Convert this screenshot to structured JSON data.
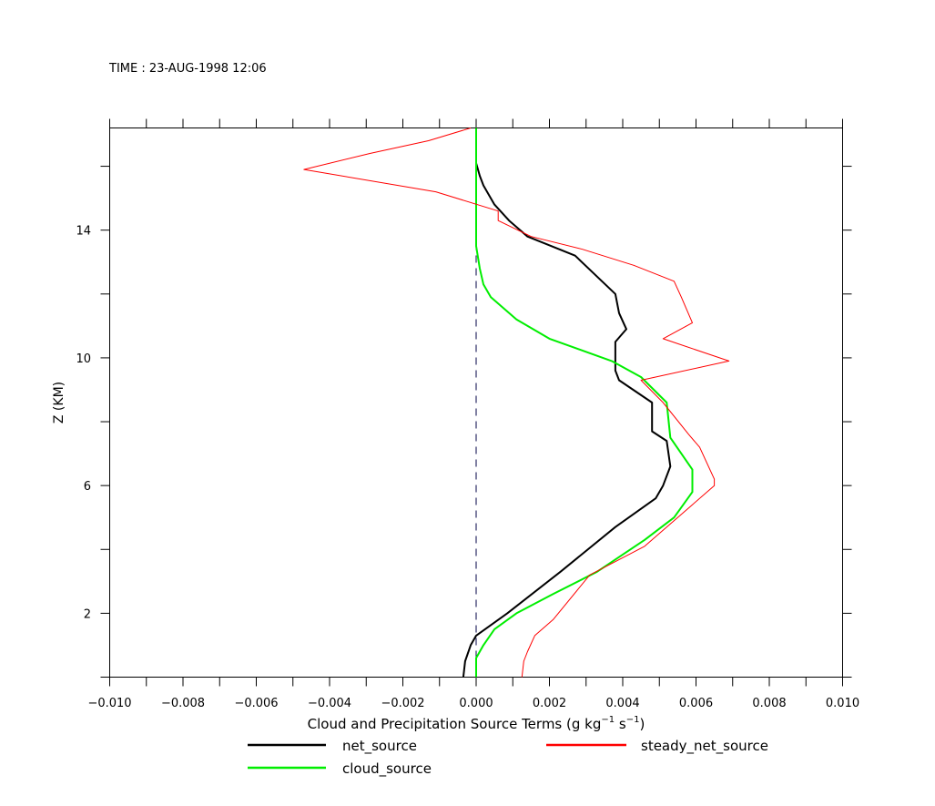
{
  "chart_data": {
    "type": "line",
    "title": "TIME : 23-AUG-1998 12:06",
    "xlabel_main": "Cloud and Precipitation Source Terms (g kg",
    "xlabel_sup1": "−1",
    "xlabel_mid": " s",
    "xlabel_sup2": "−1",
    "xlabel_end": ")",
    "ylabel": "Z (KM)",
    "xlim": [
      -0.01,
      0.01
    ],
    "ylim": [
      0.0,
      17.2
    ],
    "x_ticks": [
      "-0.010",
      "-0.008",
      "-0.006",
      "-0.004",
      "-0.002",
      "0.000",
      "0.002",
      "0.004",
      "0.006",
      "0.008",
      "0.010"
    ],
    "y_ticks": [
      "2",
      "6",
      "10",
      "14"
    ],
    "zero_line": "dashed",
    "legend_placement": "bottom",
    "series": [
      {
        "name": "net_source",
        "color": "#000000",
        "x": [
          -0.00035,
          -0.0003,
          -0.00015,
          0.0,
          0.00085,
          0.0023,
          0.0038,
          0.0049,
          0.0051,
          0.0053,
          0.0052,
          0.0048,
          0.0048,
          0.0048,
          0.0039,
          0.0038,
          0.0038,
          0.0041,
          0.0039,
          0.0038,
          0.0027,
          0.0014,
          0.0009,
          0.0005,
          0.0002,
          0.0001,
          0.0,
          0.0,
          0.0,
          0.0,
          0.0,
          0.0
        ],
        "y": [
          0.0,
          0.5,
          1.0,
          1.3,
          2.0,
          3.3,
          4.7,
          5.6,
          6.0,
          6.6,
          7.4,
          7.7,
          7.85,
          8.6,
          9.3,
          9.6,
          10.5,
          10.9,
          11.4,
          12.0,
          13.2,
          13.8,
          14.3,
          14.8,
          15.4,
          15.7,
          16.1,
          16.4,
          16.6,
          16.8,
          17.0,
          17.2
        ],
        "width": 2
      },
      {
        "name": "cloud_source",
        "color": "#00ee00",
        "x": [
          0.0,
          0.0,
          0.0002,
          0.0005,
          0.0011,
          0.0021,
          0.0033,
          0.0046,
          0.0054,
          0.0059,
          0.0059,
          0.0056,
          0.0053,
          0.0052,
          0.0045,
          0.0037,
          0.002,
          0.0011,
          0.0004,
          0.0002,
          0.0001,
          0.0,
          0.0,
          0.0,
          0.0,
          0.0,
          0.0,
          0.0,
          0.0,
          0.0
        ],
        "y": [
          0.0,
          0.6,
          1.0,
          1.5,
          2.0,
          2.6,
          3.3,
          4.3,
          5.0,
          5.8,
          6.5,
          7.0,
          7.5,
          8.6,
          9.4,
          9.9,
          10.6,
          11.2,
          11.9,
          12.3,
          12.8,
          13.5,
          14.0,
          14.5,
          15.0,
          15.5,
          16.0,
          16.5,
          17.0,
          17.2
        ],
        "width": 2
      },
      {
        "name": "steady_net_source",
        "color": "#ff0000",
        "x": [
          0.00125,
          0.0013,
          0.0014,
          0.0016,
          0.0021,
          0.0031,
          0.0046,
          0.0053,
          0.0059,
          0.0065,
          0.0065,
          0.0061,
          0.0058,
          0.0051,
          0.0045,
          0.0069,
          0.0051,
          0.0059,
          0.0056,
          0.0054,
          0.0043,
          0.0029,
          0.0015,
          0.0006,
          0.0006,
          -0.0011,
          -0.0047,
          -0.0029,
          -0.0013,
          -0.00015
        ],
        "y": [
          0.0,
          0.5,
          0.8,
          1.3,
          1.8,
          3.2,
          4.1,
          4.8,
          5.4,
          6.0,
          6.2,
          7.2,
          7.6,
          8.6,
          9.3,
          9.9,
          10.6,
          11.1,
          11.9,
          12.4,
          12.9,
          13.4,
          13.8,
          14.3,
          14.6,
          15.2,
          15.9,
          16.4,
          16.8,
          17.2
        ],
        "width": 1
      }
    ]
  }
}
